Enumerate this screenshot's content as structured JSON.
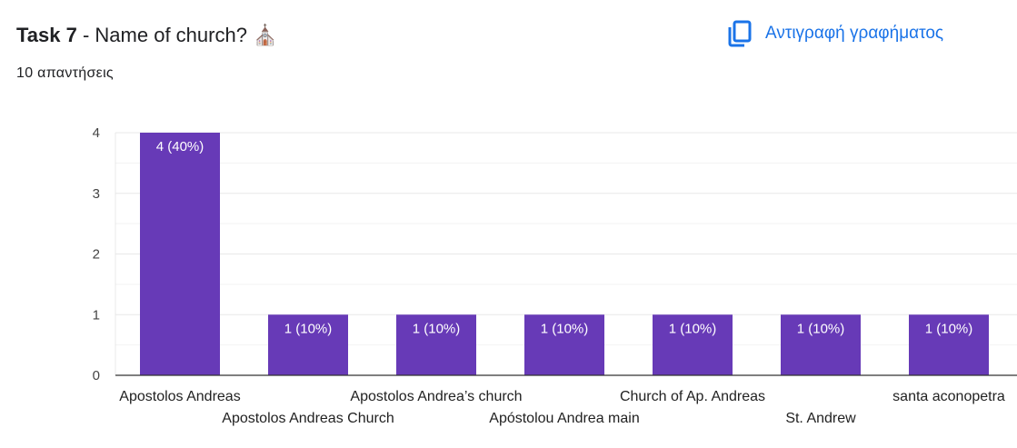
{
  "header": {
    "task_label": "Task 7",
    "question": " - Name of church?",
    "emoji": "⛪",
    "responses": "10 απαντήσεις",
    "copy_button": "Αντιγραφή γραφήματος",
    "copy_icon": "copy-icon"
  },
  "colors": {
    "bar": "#673ab7",
    "accent": "#1a73e8"
  },
  "chart_data": {
    "type": "bar",
    "categories": [
      "Apostolos Andreas",
      "Apostolos Andreas Church",
      "Apostolos Andrea’s church",
      "Apóstolou Andrea main",
      "Church of Ap. Andreas",
      "St. Andrew",
      "santa aconopetra"
    ],
    "values": [
      4,
      1,
      1,
      1,
      1,
      1,
      1
    ],
    "data_labels": [
      "4 (40%)",
      "1 (10%)",
      "1 (10%)",
      "1 (10%)",
      "1 (10%)",
      "1 (10%)",
      "1 (10%)"
    ],
    "ylim": [
      0,
      4
    ],
    "yticks": [
      "0",
      "1",
      "2",
      "3",
      "4"
    ],
    "grid": true,
    "xlabel": "",
    "ylabel": "",
    "title": ""
  }
}
